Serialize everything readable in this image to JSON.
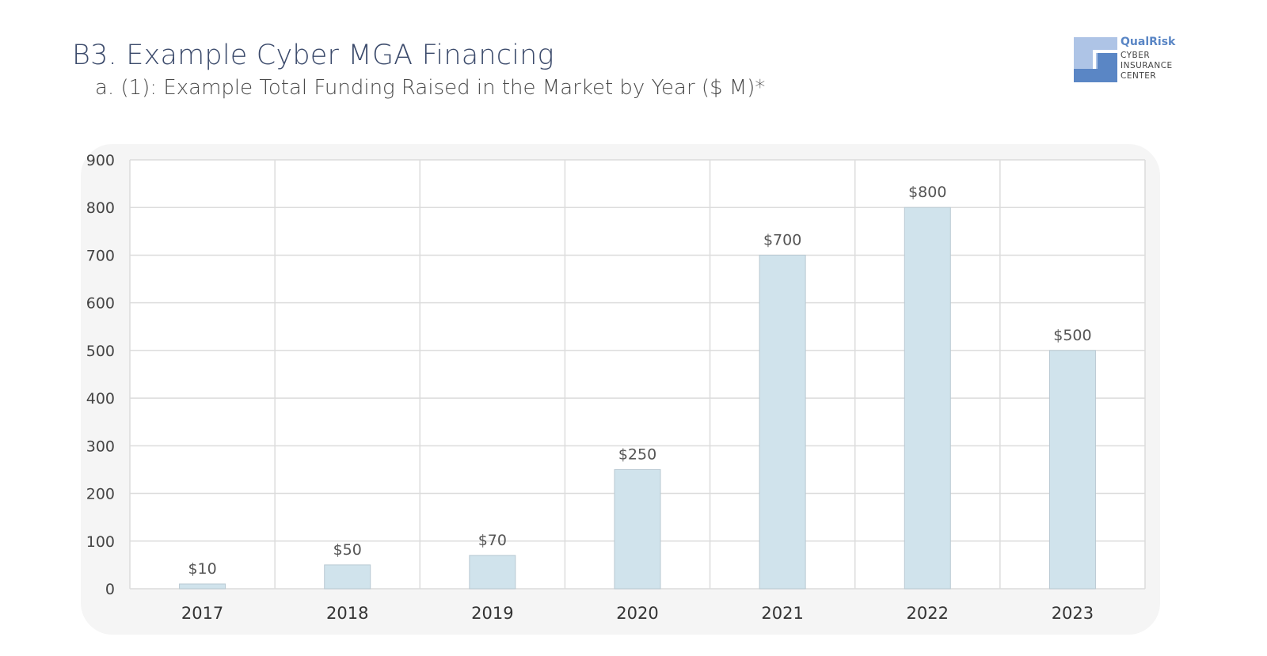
{
  "header": {
    "title": "B3. Example Cyber MGA Financing",
    "subtitle": "a. (1): Example Total Funding Raised in the Market by Year ($ M)*"
  },
  "logo": {
    "brand": "QualRisk",
    "line1": "CYBER",
    "line2": "INSURANCE",
    "line3": "CENTER"
  },
  "chart_data": {
    "type": "bar",
    "title": "",
    "categories": [
      "2017",
      "2018",
      "2019",
      "2020",
      "2021",
      "2022",
      "2023"
    ],
    "values": [
      10,
      50,
      70,
      250,
      700,
      800,
      500
    ],
    "data_labels": [
      "$10",
      "$50",
      "$70",
      "$250",
      "$700",
      "$800",
      "$500"
    ],
    "yticks": [
      0,
      100,
      200,
      300,
      400,
      500,
      600,
      700,
      800,
      900
    ],
    "ylim": [
      0,
      900
    ],
    "xlabel": "",
    "ylabel": "",
    "grid": true,
    "bar_color": "#d0e3ec"
  }
}
